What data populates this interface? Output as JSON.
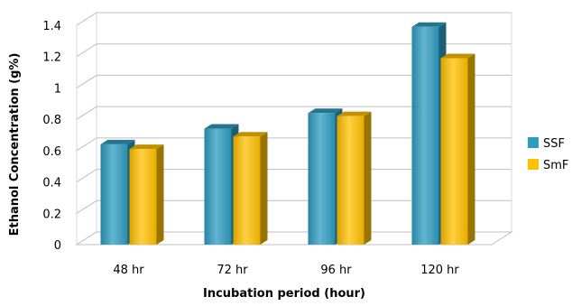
{
  "chart_data": {
    "type": "bar",
    "title": "",
    "xlabel": "Incubation period (hour)",
    "ylabel": "Ethanol Concentration (g%)",
    "categories": [
      "48 hr",
      "72 hr",
      "96 hr",
      "120 hr"
    ],
    "series": [
      {
        "name": "SSF",
        "values": [
          0.64,
          0.74,
          0.84,
          1.39
        ],
        "color": "#2E9CC0"
      },
      {
        "name": "SmF",
        "values": [
          0.61,
          0.69,
          0.82,
          1.19
        ],
        "color": "#FFC000"
      }
    ],
    "ylim": [
      0,
      1.4
    ],
    "yticks": [
      "0",
      "0.2",
      "0.4",
      "0.6",
      "0.8",
      "1",
      "1.2",
      "1.4"
    ],
    "grid": true,
    "legend": "right",
    "style": "3d-bar"
  }
}
